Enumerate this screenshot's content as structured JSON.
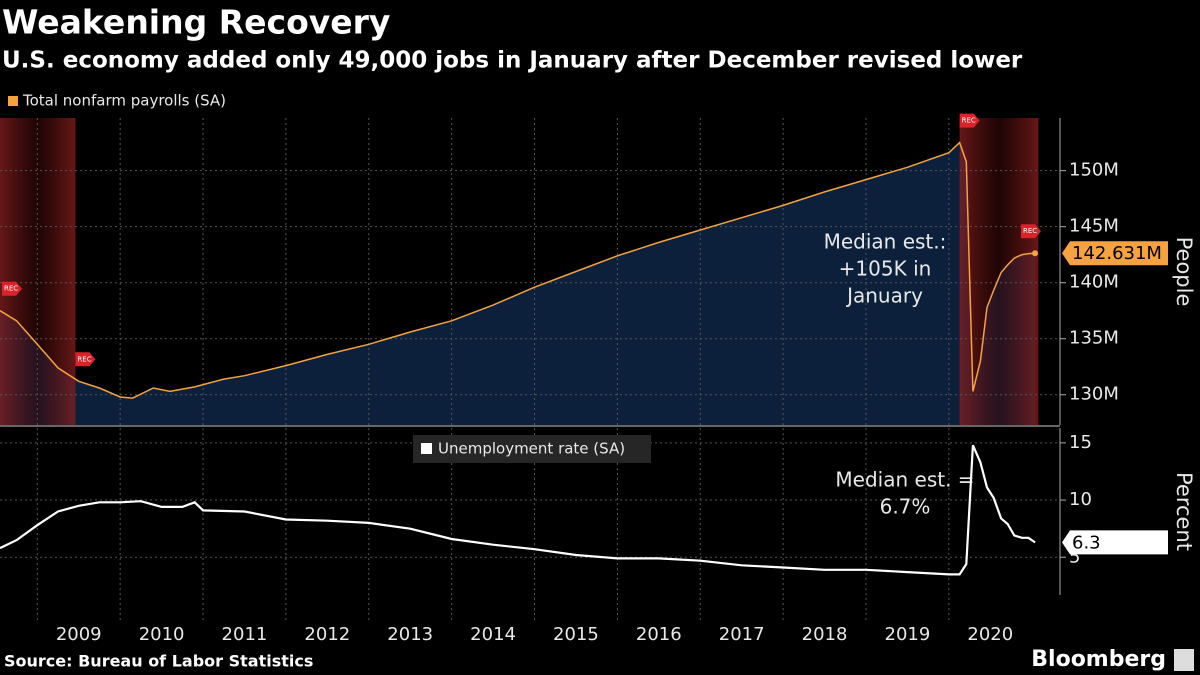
{
  "chart_data": [
    {
      "type": "area",
      "title": "Weakening Recovery",
      "subtitle": "U.S. economy added only 49,000 jobs in January after December revised lower",
      "source": "Source: Bureau of Labor Statistics",
      "brand": "Bloomberg",
      "y_axis_label": "People",
      "annotation": [
        "Median est.:",
        "+105K in",
        "January"
      ],
      "recession_label": "REC",
      "recessions": [
        [
          2007.92,
          2009.46
        ],
        [
          2020.13,
          2021.08
        ]
      ],
      "fill_color": "#0c1f3b",
      "x": [
        2008.55,
        2008.75,
        2009.0,
        2009.25,
        2009.5,
        2009.75,
        2010.0,
        2010.15,
        2010.4,
        2010.6,
        2010.9,
        2011.25,
        2011.5,
        2012.0,
        2012.5,
        2013.0,
        2013.5,
        2014.0,
        2014.5,
        2015.0,
        2015.5,
        2016.0,
        2016.5,
        2017.0,
        2017.5,
        2018.0,
        2018.5,
        2019.0,
        2019.5,
        2020.0,
        2020.13,
        2020.21,
        2020.29,
        2020.38,
        2020.46,
        2020.54,
        2020.63,
        2020.71,
        2020.79,
        2020.88,
        2020.96,
        2021.04
      ],
      "series": [
        {
          "name": "Total nonfarm payrolls (SA)",
          "color": "#f4a340",
          "values": [
            137.5,
            136.6,
            134.5,
            132.4,
            131.2,
            130.6,
            129.8,
            129.7,
            130.6,
            130.3,
            130.7,
            131.4,
            131.7,
            132.6,
            133.6,
            134.5,
            135.6,
            136.6,
            138.0,
            139.6,
            141.0,
            142.4,
            143.6,
            144.7,
            145.8,
            146.9,
            148.1,
            149.2,
            150.3,
            151.6,
            152.5,
            150.8,
            130.3,
            133.0,
            137.8,
            139.3,
            140.9,
            141.6,
            142.2,
            142.5,
            142.6,
            142.631
          ],
          "value_labels": [
            null,
            null,
            null,
            null,
            null,
            null,
            null,
            null,
            null,
            null,
            null,
            null,
            null,
            null,
            null,
            null,
            null,
            null,
            null,
            null,
            null,
            null,
            null,
            null,
            null,
            null,
            null,
            null,
            null,
            null,
            null,
            null,
            null,
            null,
            null,
            null,
            null,
            null,
            null,
            null,
            null,
            "142.631M"
          ]
        }
      ],
      "xlim": [
        2008.55,
        2021.16
      ],
      "xticks": [
        2009,
        2010,
        2011,
        2012,
        2013,
        2014,
        2015,
        2016,
        2017,
        2018,
        2019,
        2020
      ],
      "ylim": [
        127.3,
        154.7
      ],
      "yticks": [
        {
          "value": 130,
          "label": "130M"
        },
        {
          "value": 135,
          "label": "135M"
        },
        {
          "value": 140,
          "label": "140M"
        },
        {
          "value": 145,
          "label": "145M"
        },
        {
          "value": 150,
          "label": "150M"
        }
      ],
      "grid": true
    },
    {
      "type": "line",
      "y_axis_label": "Percent",
      "annotation": [
        "Median est. =",
        "6.7%"
      ],
      "x": [
        2008.55,
        2008.75,
        2009.0,
        2009.25,
        2009.5,
        2009.75,
        2010.0,
        2010.25,
        2010.5,
        2010.75,
        2010.9,
        2011.0,
        2011.5,
        2012.0,
        2012.5,
        2013.0,
        2013.5,
        2014.0,
        2014.5,
        2015.0,
        2015.5,
        2016.0,
        2016.5,
        2017.0,
        2017.5,
        2018.0,
        2018.5,
        2019.0,
        2019.5,
        2020.0,
        2020.13,
        2020.21,
        2020.29,
        2020.38,
        2020.46,
        2020.54,
        2020.63,
        2020.71,
        2020.79,
        2020.88,
        2020.96,
        2021.04
      ],
      "series": [
        {
          "name": "Unemployment rate (SA)",
          "color": "#ffffff",
          "values": [
            5.8,
            6.5,
            7.8,
            9.0,
            9.5,
            9.8,
            9.8,
            9.9,
            9.4,
            9.4,
            9.8,
            9.1,
            9.0,
            8.3,
            8.2,
            8.0,
            7.5,
            6.6,
            6.1,
            5.7,
            5.2,
            4.9,
            4.9,
            4.7,
            4.3,
            4.1,
            3.9,
            3.9,
            3.7,
            3.5,
            3.5,
            4.4,
            14.8,
            13.3,
            11.1,
            10.2,
            8.4,
            7.9,
            6.9,
            6.7,
            6.7,
            6.3
          ]
        }
      ],
      "xlim": [
        2008.55,
        2021.16
      ],
      "xticks": [
        2009,
        2010,
        2011,
        2012,
        2013,
        2014,
        2015,
        2016,
        2017,
        2018,
        2019,
        2020
      ],
      "ylim": [
        1.7,
        16.3
      ],
      "yticks": [
        5,
        10,
        15
      ],
      "grid": true
    }
  ]
}
